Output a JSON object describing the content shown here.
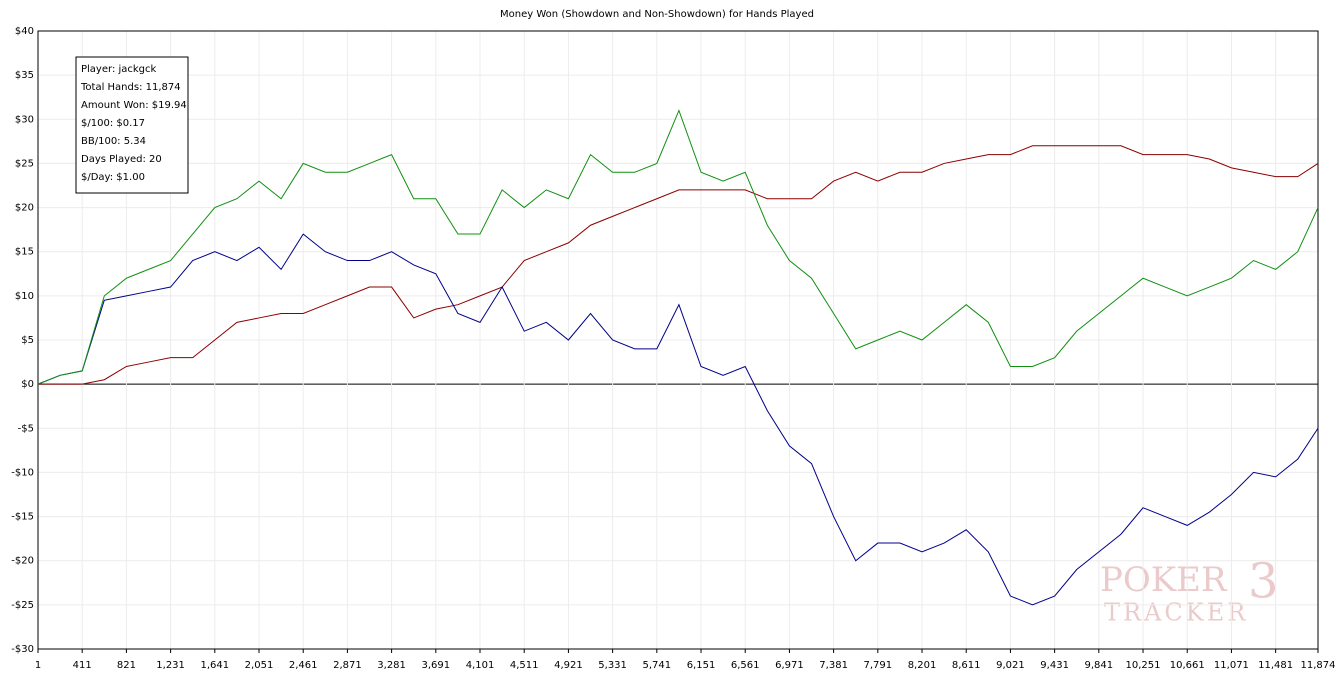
{
  "chart_data": {
    "type": "line",
    "title": "Money Won (Showdown and Non-Showdown) for Hands Played",
    "x": [
      1,
      206,
      411,
      616,
      821,
      1026,
      1231,
      1436,
      1641,
      1846,
      2051,
      2256,
      2461,
      2666,
      2871,
      3076,
      3281,
      3486,
      3691,
      3896,
      4101,
      4306,
      4511,
      4716,
      4921,
      5126,
      5331,
      5536,
      5741,
      5946,
      6151,
      6356,
      6561,
      6766,
      6971,
      7176,
      7381,
      7586,
      7791,
      7996,
      8201,
      8406,
      8611,
      8816,
      9021,
      9226,
      9431,
      9636,
      9841,
      10046,
      10251,
      10456,
      10661,
      10866,
      11071,
      11276,
      11481,
      11686,
      11874
    ],
    "series": [
      {
        "color": "#8b0000",
        "values": [
          0,
          0,
          0,
          0.5,
          2,
          2.5,
          3,
          3,
          5,
          7,
          7.5,
          8,
          8,
          9,
          10,
          11,
          11,
          7.5,
          8.5,
          9,
          10,
          11,
          14,
          15,
          16,
          18,
          19,
          20,
          21,
          22,
          22,
          22,
          22,
          21,
          21,
          21,
          23,
          24,
          23,
          24,
          24,
          25,
          25.5,
          26,
          26,
          27,
          27,
          27,
          27,
          27,
          26,
          26,
          26,
          25.5,
          24.5,
          24,
          23.5,
          23.5,
          25
        ]
      },
      {
        "color": "#00008b",
        "values": [
          0,
          1,
          1.5,
          9.5,
          10,
          10.5,
          11,
          14,
          15,
          14,
          15.5,
          13,
          17,
          15,
          14,
          14,
          15,
          13.5,
          12.5,
          8,
          7,
          11,
          6,
          7,
          5,
          8,
          5,
          4,
          4,
          9,
          2,
          1,
          2,
          -3,
          -7,
          -9,
          -15,
          -20,
          -18,
          -18,
          -19,
          -18,
          -16.5,
          -19,
          -24,
          -25,
          -24,
          -21,
          -19,
          -17,
          -14,
          -15,
          -16,
          -14.5,
          -12.5,
          -10,
          -10.5,
          -8.5,
          -5
        ]
      },
      {
        "color": "#109010",
        "values": [
          0,
          1,
          1.5,
          10,
          12,
          13,
          14,
          17,
          20,
          21,
          23,
          21,
          25,
          24,
          24,
          25,
          26,
          21,
          21,
          17,
          17,
          22,
          20,
          22,
          21,
          26,
          24,
          24,
          25,
          31,
          24,
          23,
          24,
          18,
          14,
          12,
          8,
          4,
          5,
          6,
          5,
          7,
          9,
          7,
          2,
          2,
          3,
          6,
          8,
          10,
          12,
          11,
          10,
          11,
          12,
          14,
          13,
          15,
          20
        ]
      }
    ],
    "xlim": [
      1,
      11874
    ],
    "xticks": [
      1,
      411,
      821,
      {
        "value": 1231,
        "label": "1,231"
      },
      {
        "value": 1641,
        "label": "1,641"
      },
      {
        "value": 2051,
        "label": "2,051"
      },
      {
        "value": 2461,
        "label": "2,461"
      },
      {
        "value": 2871,
        "label": "2,871"
      },
      {
        "value": 3281,
        "label": "3,281"
      },
      {
        "value": 3691,
        "label": "3,691"
      },
      {
        "value": 4101,
        "label": "4,101"
      },
      {
        "value": 4511,
        "label": "4,511"
      },
      {
        "value": 4921,
        "label": "4,921"
      },
      {
        "value": 5331,
        "label": "5,331"
      },
      {
        "value": 5741,
        "label": "5,741"
      },
      {
        "value": 6151,
        "label": "6,151"
      },
      {
        "value": 6561,
        "label": "6,561"
      },
      {
        "value": 6971,
        "label": "6,971"
      },
      {
        "value": 7381,
        "label": "7,381"
      },
      {
        "value": 7791,
        "label": "7,791"
      },
      {
        "value": 8201,
        "label": "8,201"
      },
      {
        "value": 8611,
        "label": "8,611"
      },
      {
        "value": 9021,
        "label": "9,021"
      },
      {
        "value": 9431,
        "label": "9,431"
      },
      {
        "value": 9841,
        "label": "9,841"
      },
      {
        "value": 10251,
        "label": "10,251"
      },
      {
        "value": 10661,
        "label": "10,661"
      },
      {
        "value": 11071,
        "label": "11,071"
      },
      {
        "value": 11481,
        "label": "11,481"
      },
      {
        "value": 11874,
        "label": "11,874"
      }
    ],
    "ylim": [
      -30,
      40
    ],
    "yticks": [
      {
        "value": -30,
        "label": "-$30"
      },
      {
        "value": -25,
        "label": "-$25"
      },
      {
        "value": -20,
        "label": "-$20"
      },
      {
        "value": -15,
        "label": "-$15"
      },
      {
        "value": -10,
        "label": "-$10"
      },
      {
        "value": -5,
        "label": "-$5"
      },
      {
        "value": 0,
        "label": "$0"
      },
      {
        "value": 5,
        "label": "$5"
      },
      {
        "value": 10,
        "label": "$10"
      },
      {
        "value": 15,
        "label": "$15"
      },
      {
        "value": 20,
        "label": "$20"
      },
      {
        "value": 25,
        "label": "$25"
      },
      {
        "value": 30,
        "label": "$30"
      },
      {
        "value": 35,
        "label": "$35"
      },
      {
        "value": 40,
        "label": "$40"
      }
    ],
    "grid": true,
    "info_box": [
      "Player: jackgck",
      "Total Hands: 11,874",
      "Amount Won: $19.94",
      "$/100: $0.17",
      "BB/100: 5.34",
      "Days Played: 20",
      "$/Day: $1.00"
    ],
    "watermark": {
      "line1": "POKER",
      "badge": "3",
      "line2": "TRACKER"
    }
  }
}
